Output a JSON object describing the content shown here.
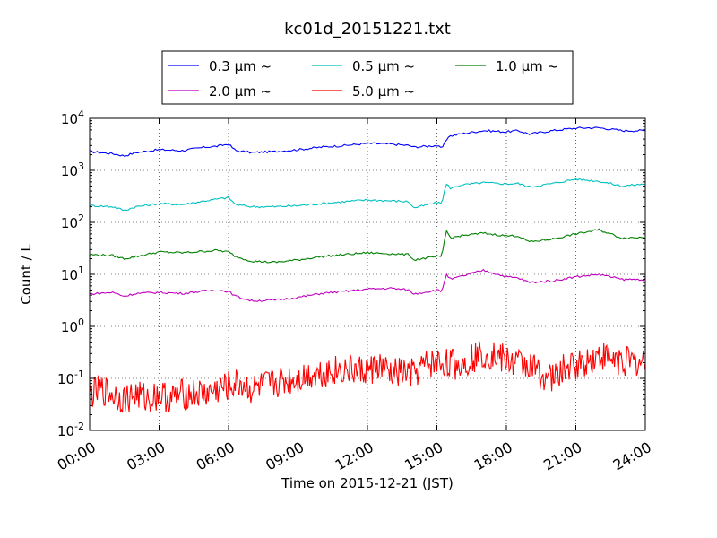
{
  "chart_data": {
    "type": "line",
    "title": "kc01d_20151221.txt",
    "xlabel": "Time on 2015-12-21 (JST)",
    "ylabel": "Count / L",
    "x_range": [
      "00:00",
      "24:00"
    ],
    "x_ticks": [
      "00:00",
      "03:00",
      "06:00",
      "09:00",
      "12:00",
      "15:00",
      "18:00",
      "21:00",
      "24:00"
    ],
    "y_scale": "log",
    "ylim": [
      0.01,
      10000
    ],
    "y_tick_values": [
      0.01,
      0.1,
      1,
      10,
      100,
      1000,
      10000
    ],
    "y_ticks": [
      {
        "base": "10",
        "exp": "-2"
      },
      {
        "base": "10",
        "exp": "-1"
      },
      {
        "base": "10",
        "exp": "0"
      },
      {
        "base": "10",
        "exp": "1"
      },
      {
        "base": "10",
        "exp": "2"
      },
      {
        "base": "10",
        "exp": "3"
      },
      {
        "base": "10",
        "exp": "4"
      }
    ],
    "grid": true,
    "legend_position": "top",
    "series": [
      {
        "name": "0.3 μm ~",
        "color": "#0000ff",
        "x_hours": [
          0,
          1,
          1.5,
          2,
          3,
          4,
          5,
          5.5,
          6,
          6.3,
          7,
          8,
          9,
          10,
          11,
          12,
          13,
          13.8,
          14,
          15,
          15.2,
          15.5,
          16,
          17,
          18,
          18.5,
          19,
          20,
          21,
          22,
          23,
          24
        ],
        "values": [
          2300,
          2100,
          1900,
          2200,
          2500,
          2400,
          2800,
          2900,
          3200,
          2400,
          2200,
          2300,
          2500,
          2800,
          3000,
          3300,
          3200,
          3000,
          2800,
          3000,
          2600,
          4500,
          5000,
          5800,
          5500,
          5800,
          5000,
          5800,
          6500,
          6600,
          5800,
          5800
        ]
      },
      {
        "name": "0.5 μm ~",
        "color": "#00bfbf",
        "x_hours": [
          0,
          1,
          1.5,
          2,
          3,
          4,
          5,
          5.5,
          6,
          6.3,
          7,
          8,
          9,
          10,
          11,
          12,
          13,
          13.8,
          14,
          15,
          15.2,
          15.4,
          15.6,
          16,
          17,
          18,
          18.5,
          19,
          20,
          21,
          22,
          23,
          24
        ],
        "values": [
          210,
          200,
          170,
          200,
          230,
          220,
          260,
          280,
          300,
          220,
          200,
          200,
          210,
          230,
          250,
          270,
          260,
          250,
          190,
          240,
          230,
          550,
          450,
          520,
          580,
          550,
          560,
          480,
          560,
          680,
          620,
          500,
          550
        ]
      },
      {
        "name": "1.0 μm ~",
        "color": "#008000",
        "x_hours": [
          0,
          1,
          1.5,
          2,
          3,
          4,
          5,
          5.5,
          6,
          6.3,
          7,
          8,
          9,
          10,
          11,
          12,
          13,
          13.8,
          14,
          15,
          15.2,
          15.4,
          15.6,
          16,
          17,
          18,
          18.5,
          19,
          20,
          21,
          22,
          23,
          24
        ],
        "values": [
          24,
          23,
          20,
          22,
          27,
          26,
          28,
          29,
          27,
          22,
          18,
          17,
          19,
          22,
          24,
          26,
          25,
          24,
          19,
          22,
          21,
          70,
          50,
          55,
          62,
          55,
          55,
          42,
          48,
          60,
          72,
          50,
          52
        ]
      },
      {
        "name": "2.0 μm ~",
        "color": "#bf00bf",
        "x_hours": [
          0,
          1,
          1.5,
          2,
          3,
          4,
          5,
          5.5,
          6,
          6.3,
          7,
          8,
          9,
          10,
          11,
          12,
          13,
          13.8,
          14,
          15,
          15.2,
          15.4,
          15.6,
          16,
          17,
          18,
          18.5,
          19,
          20,
          21,
          22,
          23,
          24
        ],
        "values": [
          4.2,
          4.5,
          3.8,
          4.3,
          4.5,
          4.3,
          4.8,
          5.0,
          4.7,
          3.8,
          3.1,
          3.2,
          3.6,
          4.3,
          4.7,
          5.2,
          5.4,
          5.0,
          4.2,
          5.0,
          4.6,
          10,
          8,
          9,
          12,
          9,
          8.5,
          7,
          7.5,
          9,
          10,
          8,
          8
        ]
      },
      {
        "name": "5.0 μm ~",
        "color": "#ff0000",
        "x_hours": [
          0,
          0.5,
          1,
          1.5,
          2,
          2.5,
          3,
          3.5,
          4,
          4.5,
          5,
          5.5,
          6,
          6.5,
          7,
          7.5,
          8,
          8.5,
          9,
          9.5,
          10,
          10.5,
          11,
          11.5,
          12,
          12.5,
          13,
          13.5,
          14,
          14.5,
          15,
          15.5,
          16,
          16.5,
          17,
          17.5,
          18,
          18.5,
          19,
          19.5,
          20,
          20.5,
          21,
          21.5,
          22,
          22.5,
          23,
          23.5,
          24
        ],
        "values": [
          0.05,
          0.06,
          0.05,
          0.04,
          0.05,
          0.04,
          0.05,
          0.04,
          0.05,
          0.05,
          0.05,
          0.06,
          0.07,
          0.08,
          0.06,
          0.07,
          0.08,
          0.09,
          0.1,
          0.12,
          0.13,
          0.14,
          0.15,
          0.14,
          0.14,
          0.17,
          0.12,
          0.13,
          0.12,
          0.18,
          0.2,
          0.2,
          0.18,
          0.25,
          0.3,
          0.28,
          0.22,
          0.2,
          0.18,
          0.12,
          0.1,
          0.15,
          0.18,
          0.22,
          0.28,
          0.24,
          0.22,
          0.2,
          0.2
        ]
      }
    ]
  }
}
